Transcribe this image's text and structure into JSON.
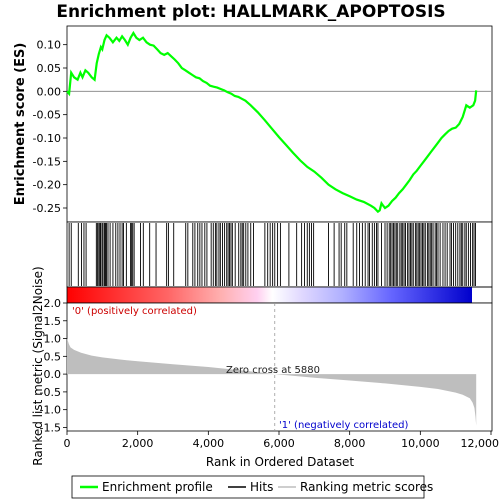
{
  "chart_data": {
    "type": "line",
    "title": "Enrichment plot: HALLMARK_APOPTOSIS",
    "xlabel": "Rank in Ordered Dataset",
    "xlim": [
      0,
      12000
    ],
    "x_ticks": [
      0,
      2000,
      4000,
      6000,
      8000,
      10000,
      12000
    ],
    "x_tick_labels": [
      "0",
      "2,000",
      "4,000",
      "6,000",
      "8,000",
      "10,000",
      "12,000"
    ],
    "es_panel": {
      "ylabel": "Enrichment score (ES)",
      "ylim": [
        -0.28,
        0.14
      ],
      "y_ticks": [
        0.1,
        0.05,
        0.0,
        -0.05,
        -0.1,
        -0.15,
        -0.2,
        -0.25
      ],
      "y_tick_labels": [
        "0.10",
        "0.05",
        "0.00",
        "-0.05",
        "-0.10",
        "-0.15",
        "-0.20",
        "-0.25"
      ],
      "series": [
        {
          "name": "Enrichment profile",
          "color": "#00ff00",
          "x": [
            0,
            60,
            120,
            200,
            300,
            380,
            440,
            520,
            600,
            700,
            780,
            840,
            900,
            960,
            1000,
            1060,
            1120,
            1200,
            1300,
            1400,
            1480,
            1560,
            1640,
            1720,
            1800,
            1880,
            1960,
            2050,
            2150,
            2250,
            2350,
            2450,
            2550,
            2650,
            2750,
            2850,
            2950,
            3050,
            3150,
            3250,
            3350,
            3450,
            3550,
            3650,
            3750,
            3850,
            3950,
            4050,
            4150,
            4250,
            4350,
            4450,
            4550,
            4650,
            4750,
            4850,
            4950,
            5050,
            5200,
            5400,
            5600,
            5800,
            6000,
            6200,
            6400,
            6600,
            6800,
            7000,
            7200,
            7400,
            7600,
            7800,
            8000,
            8200,
            8400,
            8600,
            8700,
            8800,
            8850,
            8900,
            8950,
            9000,
            9100,
            9200,
            9300,
            9400,
            9500,
            9600,
            9700,
            9800,
            9900,
            10000,
            10100,
            10200,
            10300,
            10400,
            10500,
            10600,
            10700,
            10800,
            10900,
            11000,
            11100,
            11200,
            11300,
            11400,
            11500,
            11550,
            11580
          ],
          "y": [
            0.0,
            -0.005,
            0.04,
            0.03,
            0.025,
            0.04,
            0.03,
            0.045,
            0.04,
            0.03,
            0.025,
            0.06,
            0.08,
            0.095,
            0.09,
            0.11,
            0.12,
            0.115,
            0.105,
            0.115,
            0.108,
            0.118,
            0.11,
            0.1,
            0.115,
            0.125,
            0.115,
            0.11,
            0.115,
            0.105,
            0.1,
            0.098,
            0.09,
            0.082,
            0.078,
            0.082,
            0.075,
            0.068,
            0.06,
            0.05,
            0.045,
            0.04,
            0.035,
            0.03,
            0.028,
            0.022,
            0.018,
            0.012,
            0.01,
            0.008,
            0.005,
            0.002,
            -0.002,
            -0.005,
            -0.01,
            -0.012,
            -0.016,
            -0.02,
            -0.03,
            -0.045,
            -0.062,
            -0.08,
            -0.098,
            -0.115,
            -0.132,
            -0.148,
            -0.162,
            -0.172,
            -0.185,
            -0.2,
            -0.21,
            -0.218,
            -0.225,
            -0.232,
            -0.237,
            -0.245,
            -0.25,
            -0.258,
            -0.255,
            -0.24,
            -0.245,
            -0.25,
            -0.245,
            -0.235,
            -0.228,
            -0.218,
            -0.21,
            -0.2,
            -0.19,
            -0.178,
            -0.17,
            -0.16,
            -0.15,
            -0.14,
            -0.13,
            -0.12,
            -0.11,
            -0.1,
            -0.092,
            -0.085,
            -0.08,
            -0.078,
            -0.07,
            -0.055,
            -0.03,
            -0.035,
            -0.03,
            -0.02,
            0.002
          ]
        }
      ]
    },
    "hits_panel": {
      "series_name": "Hits",
      "color": "#000000",
      "positions": [
        60,
        120,
        320,
        410,
        480,
        540,
        830,
        860,
        900,
        930,
        950,
        990,
        1020,
        1060,
        1090,
        1120,
        1160,
        1220,
        1300,
        1380,
        1440,
        1500,
        1560,
        1600,
        1680,
        1800,
        1830,
        1860,
        1900,
        2080,
        2160,
        2340,
        2520,
        2820,
        2870,
        3020,
        3360,
        3420,
        3560,
        3620,
        3700,
        3760,
        3820,
        3900,
        3960,
        4080,
        4140,
        4200,
        4240,
        4300,
        4340,
        4400,
        4460,
        4520,
        4560,
        4600,
        4640,
        4680,
        4760,
        4860,
        4920,
        4960,
        5000,
        5060,
        5120,
        5200,
        5280,
        5600,
        5680,
        5750,
        5820,
        5880,
        5960,
        6040,
        6280,
        6500,
        6640,
        6720,
        6800,
        6860,
        6920,
        6980,
        7400,
        7560,
        7700,
        7760,
        7860,
        7920,
        8100,
        8200,
        8280,
        8360,
        8440,
        8520,
        8560,
        8640,
        8700,
        8760,
        8800,
        8900,
        9000,
        9060,
        9120,
        9160,
        9200,
        9240,
        9280,
        9320,
        9360,
        9420,
        9460,
        9500,
        9540,
        9580,
        9640,
        9680,
        9720,
        9760,
        9800,
        9860,
        9900,
        9940,
        9980,
        10020,
        10060,
        10100,
        10140,
        10200,
        10240,
        10280,
        10320,
        10360,
        10420,
        10460,
        10500,
        10560,
        10640,
        10700,
        10760,
        10840,
        10880,
        10940,
        11000,
        11060,
        11120,
        11160,
        11200,
        11260,
        11300,
        11360,
        11420,
        11480,
        11520,
        11560
      ]
    },
    "metric_panel": {
      "ylabel": "Ranked list metric (Signal2Noise)",
      "series_name": "Ranking metric scores",
      "color": "#bebebe",
      "ylim": [
        -1.6,
        2.0
      ],
      "y_ticks": [
        2.0,
        1.5,
        1.0,
        0.5,
        0.0,
        -0.5,
        -1.0,
        -1.5
      ],
      "y_tick_labels": [
        "2.0",
        "1.5",
        "1.0",
        "0.5",
        "0.0",
        "-0.5",
        "-1.0",
        "-1.5"
      ],
      "x": [
        0,
        20,
        50,
        100,
        200,
        400,
        700,
        1000,
        1500,
        2000,
        3000,
        4000,
        5000,
        5880,
        7000,
        8000,
        9000,
        10000,
        10500,
        11000,
        11200,
        11400,
        11480,
        11530,
        11560,
        11580
      ],
      "y": [
        1.0,
        0.95,
        0.85,
        0.75,
        0.68,
        0.6,
        0.52,
        0.47,
        0.41,
        0.36,
        0.28,
        0.2,
        0.1,
        0.0,
        -0.1,
        -0.18,
        -0.26,
        -0.36,
        -0.42,
        -0.52,
        -0.58,
        -0.68,
        -0.8,
        -0.95,
        -1.2,
        -1.45
      ],
      "zero_cross_label": "Zero cross at 5880",
      "zero_cross_x": 5880,
      "pos_label": "'0' (positively correlated)",
      "neg_label": "'1' (negatively correlated)"
    },
    "legend": {
      "placement": "bottom",
      "entries": [
        "Enrichment profile",
        "Hits",
        "Ranking metric scores"
      ]
    }
  }
}
